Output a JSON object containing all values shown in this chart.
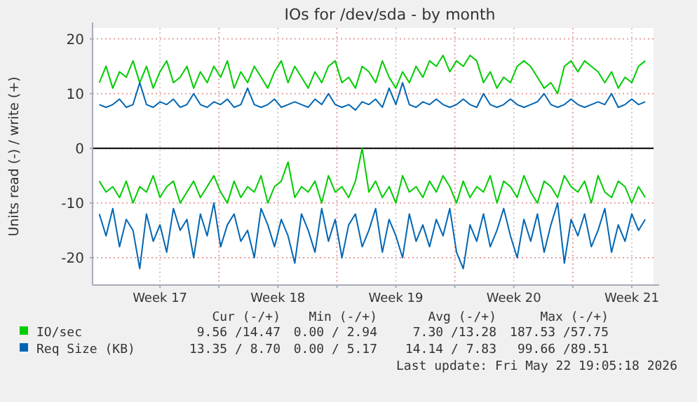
{
  "chart_data": {
    "type": "line",
    "title": "IOs for /dev/sda - by month",
    "ylabel": "Units read (-) / write (+)",
    "x": [
      "2026-04-19T21:36",
      "2026-04-20T07:12",
      "2026-04-20T16:48",
      "2026-04-21T02:24",
      "2026-04-21T12:00",
      "2026-04-21T21:36",
      "2026-04-22T07:12",
      "2026-04-22T16:48",
      "2026-04-23T02:24",
      "2026-04-23T12:00",
      "2026-04-23T21:36",
      "2026-04-24T07:12",
      "2026-04-24T16:48",
      "2026-04-25T02:24",
      "2026-04-25T12:00",
      "2026-04-25T21:36",
      "2026-04-26T07:12",
      "2026-04-26T16:48",
      "2026-04-27T02:24",
      "2026-04-27T12:00",
      "2026-04-27T21:36",
      "2026-04-28T07:12",
      "2026-04-28T16:48",
      "2026-04-29T02:24",
      "2026-04-29T12:00",
      "2026-04-29T21:36",
      "2026-04-30T07:12",
      "2026-04-30T16:48",
      "2026-05-01T02:24",
      "2026-05-01T12:00",
      "2026-05-01T21:36",
      "2026-05-02T07:12",
      "2026-05-02T16:48",
      "2026-05-03T02:24",
      "2026-05-03T12:00",
      "2026-05-03T21:36",
      "2026-05-04T07:12",
      "2026-05-04T16:48",
      "2026-05-05T02:24",
      "2026-05-05T12:00",
      "2026-05-05T21:36",
      "2026-05-06T07:12",
      "2026-05-06T16:48",
      "2026-05-07T02:24",
      "2026-05-07T12:00",
      "2026-05-07T21:36",
      "2026-05-08T07:12",
      "2026-05-08T16:48",
      "2026-05-09T02:24",
      "2026-05-09T12:00",
      "2026-05-09T21:36",
      "2026-05-10T07:12",
      "2026-05-10T16:48",
      "2026-05-11T02:24",
      "2026-05-11T12:00",
      "2026-05-11T21:36",
      "2026-05-12T07:12",
      "2026-05-12T16:48",
      "2026-05-13T02:24",
      "2026-05-13T12:00",
      "2026-05-13T21:36",
      "2026-05-14T07:12",
      "2026-05-14T16:48",
      "2026-05-15T02:24",
      "2026-05-15T12:00",
      "2026-05-15T21:36",
      "2026-05-16T07:12",
      "2026-05-16T16:48",
      "2026-05-17T02:24",
      "2026-05-17T12:00",
      "2026-05-17T21:36",
      "2026-05-18T07:12",
      "2026-05-18T16:48",
      "2026-05-19T02:24",
      "2026-05-19T12:00",
      "2026-05-19T21:36",
      "2026-05-20T07:12",
      "2026-05-20T16:48",
      "2026-05-21T02:24",
      "2026-05-21T12:00",
      "2026-05-21T21:36",
      "2026-05-22T07:12"
    ],
    "series": [
      {
        "name": "IO/sec",
        "color": "#00cc00",
        "values": [
          12,
          15,
          11,
          14,
          13,
          16,
          12,
          15,
          11,
          14,
          16,
          12,
          13,
          15,
          11,
          14,
          12,
          15,
          13,
          16,
          11,
          14,
          12,
          15,
          13,
          11,
          14,
          16,
          12,
          15,
          13,
          11,
          14,
          12,
          15,
          16,
          12,
          13,
          11,
          15,
          14,
          12,
          16,
          13,
          11,
          14,
          12,
          15,
          13,
          16,
          15,
          17,
          14,
          16,
          15,
          17,
          16,
          12,
          14,
          11,
          13,
          12,
          15,
          16,
          15,
          13,
          11,
          12,
          10,
          15,
          16,
          14,
          16,
          15,
          14,
          12,
          14,
          11,
          13,
          12,
          15,
          16
        ]
      },
      {
        "color": "#00cc00",
        "values": [
          -6,
          -8,
          -7,
          -9,
          -6,
          -10,
          -7,
          -8,
          -5,
          -9,
          -7,
          -6,
          -10,
          -8,
          -6,
          -9,
          -7,
          -5,
          -8,
          -10,
          -6,
          -9,
          -7,
          -8,
          -5,
          -10,
          -7,
          -6,
          -2.5,
          -9,
          -7,
          -8,
          -6,
          -10,
          -5,
          -8,
          -7,
          -9,
          -6,
          0,
          -8,
          -6,
          -9,
          -7,
          -10,
          -5,
          -8,
          -7,
          -9,
          -6,
          -8,
          -5,
          -7,
          -10,
          -6,
          -9,
          -7,
          -8,
          -5,
          -10,
          -6,
          -7,
          -9,
          -5,
          -8,
          -10,
          -6,
          -7,
          -9,
          -5,
          -7,
          -8,
          -6,
          -10,
          -5,
          -8,
          -9,
          -6,
          -7,
          -10,
          -7,
          -9
        ]
      },
      {
        "name": "Req Size (KB)",
        "color": "#0066b3",
        "values": [
          8,
          7.5,
          8,
          9,
          7.5,
          8,
          12,
          8,
          7.5,
          8.5,
          8,
          9,
          7.5,
          8,
          10,
          8,
          7.5,
          8.5,
          8,
          9,
          7.5,
          8,
          11,
          8,
          7.5,
          8,
          9,
          7.5,
          8,
          8.5,
          8,
          7.5,
          9,
          8,
          10,
          8,
          7.5,
          8,
          7,
          8.5,
          8,
          9,
          7.5,
          11,
          8,
          12,
          8,
          7.5,
          8.5,
          8,
          9,
          8,
          7.5,
          8,
          9,
          8,
          7.5,
          10,
          8,
          7.5,
          8,
          9,
          8,
          7.5,
          8,
          8.5,
          10,
          8,
          7.5,
          8,
          9,
          8,
          7.5,
          8,
          8.5,
          8,
          10,
          7.5,
          8,
          9,
          8,
          8.5
        ]
      },
      {
        "color": "#0066b3",
        "values": [
          -12,
          -16,
          -11,
          -18,
          -13,
          -15,
          -22,
          -12,
          -17,
          -14,
          -19,
          -11,
          -15,
          -13,
          -20,
          -12,
          -16,
          -10,
          -18,
          -14,
          -12,
          -17,
          -15,
          -20,
          -11,
          -14,
          -18,
          -13,
          -16,
          -21,
          -12,
          -15,
          -19,
          -11,
          -17,
          -13,
          -20,
          -14,
          -12,
          -18,
          -15,
          -11,
          -19,
          -13,
          -16,
          -20,
          -12,
          -17,
          -14,
          -18,
          -13,
          -16,
          -11,
          -19,
          -22,
          -14,
          -17,
          -12,
          -18,
          -15,
          -11,
          -16,
          -20,
          -13,
          -17,
          -12,
          -19,
          -14,
          -10,
          -21,
          -13,
          -16,
          -12,
          -18,
          -15,
          -11,
          -19,
          -14,
          -17,
          -12,
          -15,
          -13
        ]
      }
    ],
    "xlim": [
      "2026-04-19T12:00",
      "2026-05-22T19:00"
    ],
    "xticks": [
      {
        "value": "2026-04-23T12:00",
        "label": "Week 17"
      },
      {
        "value": "2026-04-27",
        "label": null
      },
      {
        "value": "2026-04-30T12:00",
        "label": "Week 18"
      },
      {
        "value": "2026-05-04",
        "label": null
      },
      {
        "value": "2026-05-07T12:00",
        "label": "Week 19"
      },
      {
        "value": "2026-05-11",
        "label": null
      },
      {
        "value": "2026-05-14T12:00",
        "label": "Week 20"
      },
      {
        "value": "2026-05-18",
        "label": null
      },
      {
        "value": "2026-05-21T12:00",
        "label": "Week 21"
      }
    ],
    "ylim": [
      -25,
      22
    ],
    "yticks": [
      -20,
      -10,
      0,
      10,
      20
    ],
    "grid": true,
    "legend": "bottom",
    "ref_lines": [
      {
        "axis": "y",
        "value": 0,
        "color": "#000000"
      }
    ],
    "annotations": [
      "Cur (-/+)",
      "Min (-/+)",
      "Avg (-/+)",
      "Max (-/+)",
      "9.56 /14.47",
      "0.00 / 2.94",
      "7.30 /13.28",
      "187.53 /57.75",
      "13.35 / 8.70",
      "0.00 / 5.17",
      "14.14 / 7.83",
      "99.66 /89.51",
      "Last update: Fri May 22 19:05:18 2026"
    ]
  }
}
